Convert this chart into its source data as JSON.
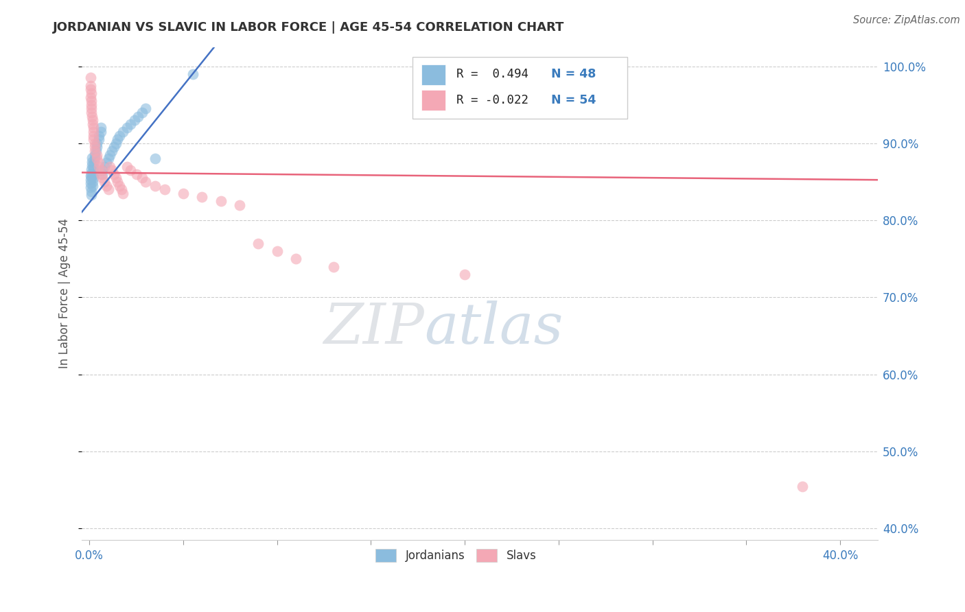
{
  "title": "JORDANIAN VS SLAVIC IN LABOR FORCE | AGE 45-54 CORRELATION CHART",
  "source": "Source: ZipAtlas.com",
  "ylabel": "In Labor Force | Age 45-54",
  "blue_color": "#8bbcde",
  "pink_color": "#f4a8b5",
  "blue_line_color": "#4472c4",
  "pink_line_color": "#e8637a",
  "background_color": "#ffffff",
  "grid_color": "#cccccc",
  "R_blue": 0.494,
  "N_blue": 48,
  "R_pink": -0.022,
  "N_pink": 54,
  "xlim": [
    -0.004,
    0.42
  ],
  "ylim": [
    0.385,
    1.025
  ],
  "x_ticks": [
    0.0,
    0.05,
    0.1,
    0.15,
    0.2,
    0.25,
    0.3,
    0.35,
    0.4
  ],
  "y_ticks": [
    0.4,
    0.5,
    0.6,
    0.7,
    0.8,
    0.9,
    1.0
  ],
  "jordanians_x": [
    0.0005,
    0.0006,
    0.0007,
    0.0008,
    0.0009,
    0.001,
    0.001,
    0.001,
    0.0012,
    0.0013,
    0.0015,
    0.0015,
    0.0016,
    0.0017,
    0.002,
    0.002,
    0.002,
    0.0022,
    0.0025,
    0.003,
    0.003,
    0.0035,
    0.004,
    0.004,
    0.005,
    0.005,
    0.006,
    0.006,
    0.007,
    0.007,
    0.008,
    0.009,
    0.01,
    0.011,
    0.012,
    0.013,
    0.014,
    0.015,
    0.016,
    0.018,
    0.02,
    0.022,
    0.024,
    0.026,
    0.028,
    0.03,
    0.035,
    0.055
  ],
  "jordanians_y": [
    0.858,
    0.853,
    0.848,
    0.843,
    0.838,
    0.833,
    0.856,
    0.861,
    0.866,
    0.871,
    0.876,
    0.881,
    0.845,
    0.85,
    0.855,
    0.86,
    0.865,
    0.87,
    0.875,
    0.88,
    0.885,
    0.89,
    0.895,
    0.9,
    0.905,
    0.91,
    0.915,
    0.92,
    0.86,
    0.865,
    0.87,
    0.875,
    0.88,
    0.885,
    0.89,
    0.895,
    0.9,
    0.905,
    0.91,
    0.915,
    0.92,
    0.925,
    0.93,
    0.935,
    0.94,
    0.945,
    0.88,
    0.99
  ],
  "slavs_x": [
    0.0005,
    0.0006,
    0.0007,
    0.0008,
    0.001,
    0.001,
    0.001,
    0.001,
    0.0012,
    0.0014,
    0.0016,
    0.0018,
    0.002,
    0.002,
    0.002,
    0.002,
    0.003,
    0.003,
    0.003,
    0.004,
    0.004,
    0.005,
    0.005,
    0.006,
    0.006,
    0.007,
    0.008,
    0.009,
    0.01,
    0.011,
    0.012,
    0.013,
    0.014,
    0.015,
    0.016,
    0.017,
    0.018,
    0.02,
    0.022,
    0.025,
    0.028,
    0.03,
    0.035,
    0.04,
    0.05,
    0.06,
    0.07,
    0.08,
    0.09,
    0.1,
    0.11,
    0.13,
    0.2,
    0.38
  ],
  "slavs_y": [
    0.985,
    0.96,
    0.97,
    0.975,
    0.965,
    0.955,
    0.95,
    0.945,
    0.94,
    0.935,
    0.93,
    0.925,
    0.92,
    0.915,
    0.91,
    0.905,
    0.9,
    0.895,
    0.89,
    0.885,
    0.88,
    0.875,
    0.87,
    0.865,
    0.86,
    0.855,
    0.85,
    0.845,
    0.84,
    0.87,
    0.865,
    0.86,
    0.855,
    0.85,
    0.845,
    0.84,
    0.835,
    0.87,
    0.865,
    0.86,
    0.855,
    0.85,
    0.845,
    0.84,
    0.835,
    0.83,
    0.825,
    0.82,
    0.77,
    0.76,
    0.75,
    0.74,
    0.73,
    0.455
  ],
  "watermark_zip": "ZIP",
  "watermark_atlas": "atlas",
  "watermark_color_zip": "#c8d0da",
  "watermark_color_atlas": "#b8c8de"
}
